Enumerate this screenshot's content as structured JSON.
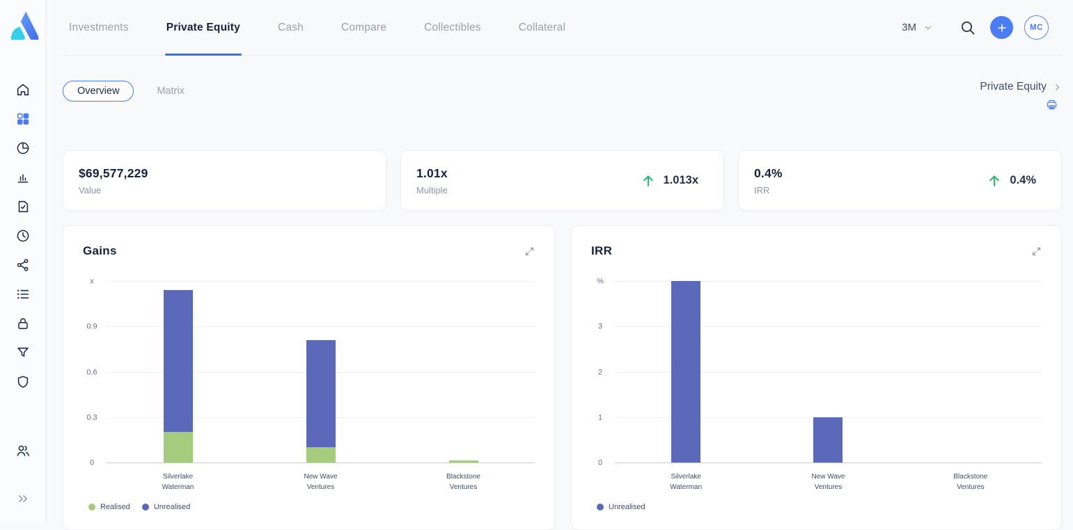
{
  "topnav": {
    "tabs": [
      {
        "label": "Investments",
        "active": false
      },
      {
        "label": "Private Equity",
        "active": true
      },
      {
        "label": "Cash",
        "active": false
      },
      {
        "label": "Compare",
        "active": false
      },
      {
        "label": "Collectibles",
        "active": false
      },
      {
        "label": "Collateral",
        "active": false
      }
    ],
    "period": "3M",
    "period_icon": "chevron-down-icon",
    "icons": [
      "search-icon",
      "add-icon"
    ],
    "avatar_initials": "MC"
  },
  "sidebar": {
    "items": [
      {
        "name": "home",
        "active": false
      },
      {
        "name": "dashboard",
        "active": true
      },
      {
        "name": "pie-chart",
        "active": false
      },
      {
        "name": "bar-chart",
        "active": false
      },
      {
        "name": "document-check",
        "active": false
      },
      {
        "name": "history",
        "active": false
      },
      {
        "name": "share",
        "active": false
      },
      {
        "name": "list",
        "active": false
      },
      {
        "name": "lock",
        "active": false
      },
      {
        "name": "filter",
        "active": false
      },
      {
        "name": "shield",
        "active": false
      }
    ],
    "bottom_items": [
      {
        "name": "users",
        "active": false
      },
      {
        "name": "expand-sidebar",
        "active": false,
        "muted": true
      }
    ]
  },
  "subnav": {
    "view_tabs": [
      {
        "label": "Overview",
        "active": true
      },
      {
        "label": "Matrix",
        "active": false
      }
    ],
    "breadcrumb": "Private Equity",
    "print_icon": "printer-icon"
  },
  "stats": [
    {
      "value": "$69,577,229",
      "label": "Value"
    },
    {
      "value": "1.01x",
      "label": "Multiple",
      "delta": "1.013x",
      "delta_direction": "up"
    },
    {
      "value": "0.4%",
      "label": "IRR",
      "delta": "0.4%",
      "delta_direction": "up"
    }
  ],
  "colors": {
    "accent_blue": "#3d6bef",
    "button_blue": "#4a7df5",
    "realised_green": "#a5cb7d",
    "unrealised_indigo": "#5b69ba",
    "delta_green": "#2eb873",
    "text_navy": "#15223f",
    "text_gray": "#8d95a7"
  },
  "chart_data": [
    {
      "type": "bar",
      "stacked": true,
      "title": "Gains",
      "unit": "x",
      "ylim": [
        0,
        1.2
      ],
      "ymax": 1.2,
      "ticks": [
        0,
        0.3,
        0.6,
        0.9
      ],
      "grid": true,
      "legend_position": "bottom-left",
      "categories": [
        "Silverlake\nWaterman",
        "New Wave\nVentures",
        "Blackstone\nVentures"
      ],
      "series": [
        {
          "name": "Realised",
          "color": "#a5cb7d",
          "values": [
            0.2,
            0.1,
            0.015
          ]
        },
        {
          "name": "Unrealised",
          "color": "#5b69ba",
          "values": [
            0.94,
            0.71,
            0
          ]
        }
      ]
    },
    {
      "type": "bar",
      "stacked": false,
      "title": "IRR",
      "unit": "%",
      "ylim": [
        0,
        4
      ],
      "ymax": 4,
      "ticks": [
        0,
        1,
        2,
        3
      ],
      "grid": true,
      "legend_position": "bottom-left",
      "categories": [
        "Silverlake\nWaterman",
        "New Wave\nVentures",
        "Blackstone\nVentures"
      ],
      "series": [
        {
          "name": "Unrealised",
          "color": "#5b69ba",
          "values": [
            4,
            1,
            0
          ]
        }
      ]
    }
  ]
}
